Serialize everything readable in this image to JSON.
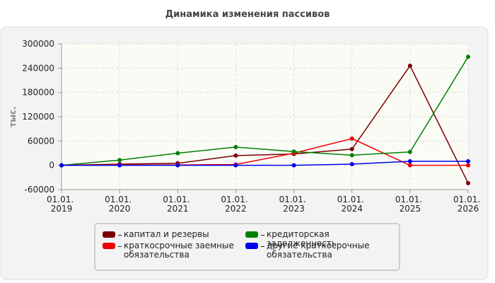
{
  "chart_data": {
    "type": "line",
    "title": "Динамика изменения пассивов",
    "y_label": "тыс.",
    "categories": [
      "01.01. 2019",
      "01.01. 2020",
      "01.01. 2021",
      "01.01. 2022",
      "01.01. 2023",
      "01.01. 2024",
      "01.01. 2025",
      "01.01. 2026"
    ],
    "series": [
      {
        "name": "капитал и резервы",
        "color": "#7a0000",
        "values": [
          0,
          3000,
          5000,
          24000,
          28000,
          40000,
          246000,
          -44000
        ]
      },
      {
        "name": "краткосрочные заемные обязательства",
        "color": "#ee0000",
        "values": [
          0,
          1000,
          1000,
          2000,
          30000,
          66000,
          0,
          0
        ]
      },
      {
        "name": "кредиторская задолженность",
        "color": "#008000",
        "values": [
          0,
          13000,
          30000,
          45000,
          34000,
          25000,
          33000,
          268000
        ]
      },
      {
        "name": "другие краткосрочные обязательства",
        "color": "#0000ee",
        "values": [
          0,
          0,
          0,
          0,
          0,
          3000,
          10000,
          10000
        ]
      }
    ],
    "ylim": [
      -60000,
      300000
    ],
    "yticks": [
      -60000,
      0,
      60000,
      120000,
      180000,
      240000,
      300000
    ],
    "grid": true
  }
}
